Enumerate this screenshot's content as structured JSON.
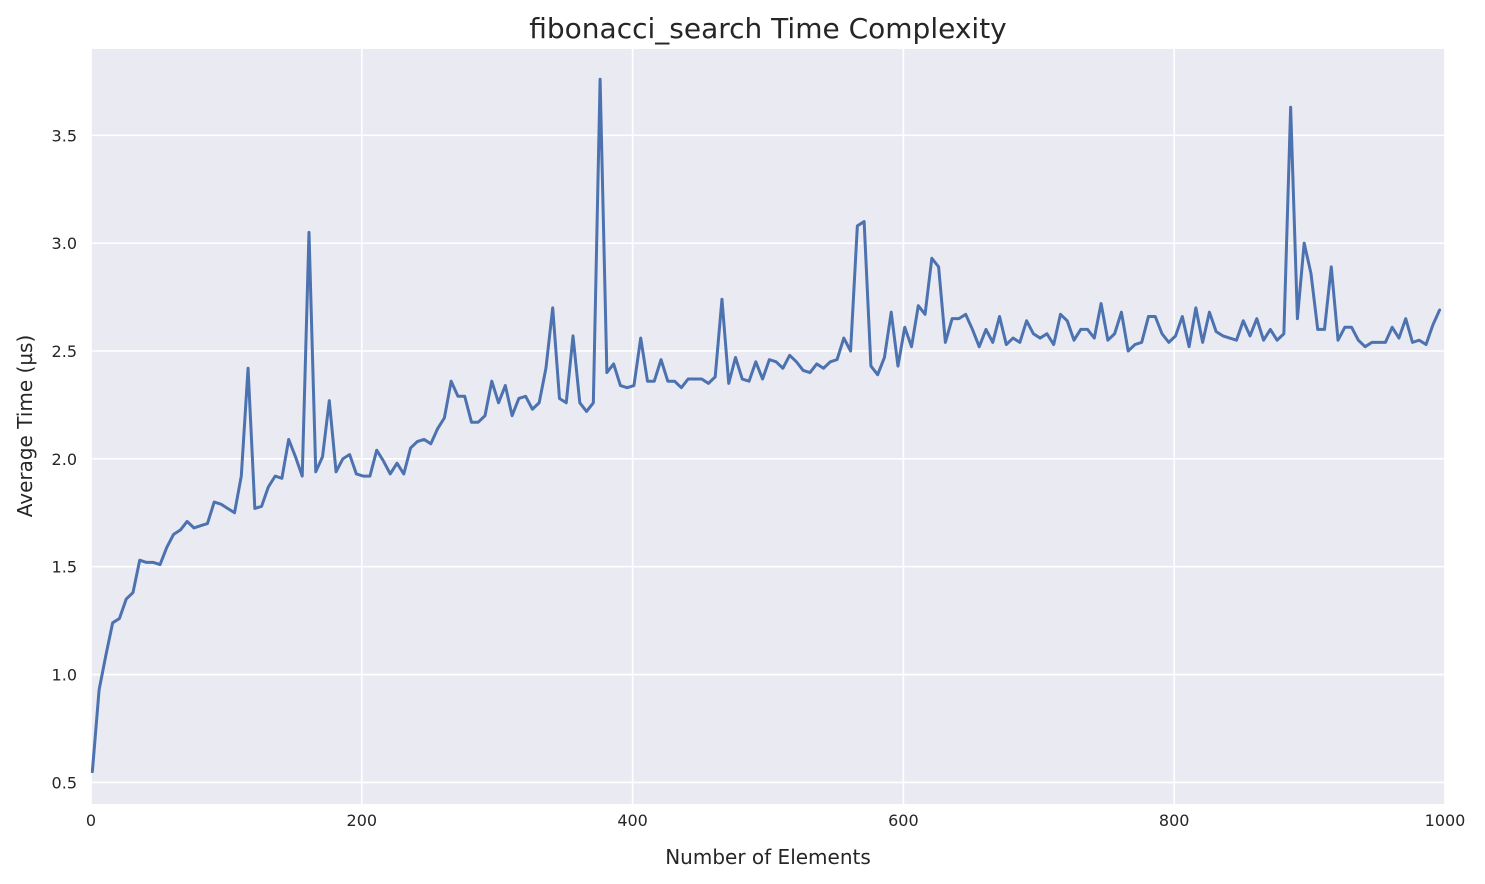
{
  "chart_data": {
    "type": "line",
    "title": "fibonacci_search Time Complexity",
    "xlabel": "Number of Elements",
    "ylabel": "Average Time (µs)",
    "xlim": [
      0,
      1000
    ],
    "ylim": [
      0.4,
      3.9
    ],
    "xticks": [
      0,
      200,
      400,
      600,
      800,
      1000
    ],
    "yticks": [
      0.5,
      1.0,
      1.5,
      2.0,
      2.5,
      3.0,
      3.5
    ],
    "grid": true,
    "colors": {
      "background": "#eaeaf2",
      "grid": "#ffffff",
      "series": "#4c72b0"
    },
    "series": [
      {
        "x": [
          1,
          6,
          11,
          16,
          21,
          26,
          31,
          36,
          41,
          46,
          51,
          56,
          61,
          66,
          71,
          76,
          81,
          86,
          91,
          96,
          101,
          106,
          111,
          116,
          121,
          126,
          131,
          136,
          141,
          146,
          151,
          156,
          161,
          166,
          171,
          176,
          181,
          186,
          191,
          196,
          201,
          206,
          211,
          216,
          221,
          226,
          231,
          236,
          241,
          246,
          251,
          256,
          261,
          266,
          271,
          276,
          281,
          286,
          291,
          296,
          301,
          306,
          311,
          316,
          321,
          326,
          331,
          336,
          341,
          346,
          351,
          356,
          361,
          366,
          371,
          376,
          381,
          386,
          391,
          396,
          401,
          406,
          411,
          416,
          421,
          426,
          431,
          436,
          441,
          446,
          451,
          456,
          461,
          466,
          471,
          476,
          481,
          486,
          491,
          496,
          501,
          506,
          511,
          516,
          521,
          526,
          531,
          536,
          541,
          546,
          551,
          556,
          561,
          566,
          571,
          576,
          581,
          586,
          591,
          596,
          601,
          606,
          611,
          616,
          621,
          626,
          631,
          636,
          641,
          646,
          651,
          656,
          661,
          666,
          671,
          676,
          681,
          686,
          691,
          696,
          701,
          706,
          711,
          716,
          721,
          726,
          731,
          736,
          741,
          746,
          751,
          756,
          761,
          766,
          771,
          776,
          781,
          786,
          791,
          796,
          801,
          806,
          811,
          816,
          821,
          826,
          831,
          836,
          841,
          846,
          851,
          856,
          861,
          866,
          871,
          876,
          881,
          886,
          891,
          896,
          901,
          906,
          911,
          916,
          921,
          926,
          931,
          936,
          941,
          946,
          951,
          956,
          961,
          966,
          971,
          976,
          981,
          986,
          991,
          996
        ],
        "values": [
          0.55,
          0.93,
          1.09,
          1.24,
          1.26,
          1.35,
          1.38,
          1.53,
          1.52,
          1.52,
          1.51,
          1.59,
          1.65,
          1.67,
          1.71,
          1.68,
          1.69,
          1.7,
          1.8,
          1.79,
          1.77,
          1.75,
          1.92,
          2.42,
          1.77,
          1.78,
          1.87,
          1.92,
          1.91,
          2.09,
          2.01,
          1.92,
          3.05,
          1.94,
          2.01,
          2.27,
          1.94,
          2.0,
          2.02,
          1.93,
          1.92,
          1.92,
          2.04,
          1.99,
          1.93,
          1.98,
          1.93,
          2.05,
          2.08,
          2.09,
          2.07,
          2.14,
          2.19,
          2.36,
          2.29,
          2.29,
          2.17,
          2.17,
          2.2,
          2.36,
          2.26,
          2.34,
          2.2,
          2.28,
          2.29,
          2.23,
          2.26,
          2.42,
          2.7,
          2.28,
          2.26,
          2.57,
          2.26,
          2.22,
          2.26,
          3.76,
          2.4,
          2.44,
          2.34,
          2.33,
          2.34,
          2.56,
          2.36,
          2.36,
          2.46,
          2.36,
          2.36,
          2.33,
          2.37,
          2.37,
          2.37,
          2.35,
          2.38,
          2.74,
          2.35,
          2.47,
          2.37,
          2.36,
          2.45,
          2.37,
          2.46,
          2.45,
          2.42,
          2.48,
          2.45,
          2.41,
          2.4,
          2.44,
          2.42,
          2.45,
          2.46,
          2.56,
          2.5,
          3.08,
          3.1,
          2.43,
          2.39,
          2.47,
          2.68,
          2.43,
          2.61,
          2.52,
          2.71,
          2.67,
          2.93,
          2.89,
          2.54,
          2.65,
          2.65,
          2.67,
          2.6,
          2.52,
          2.6,
          2.54,
          2.66,
          2.53,
          2.56,
          2.54,
          2.64,
          2.58,
          2.56,
          2.58,
          2.53,
          2.67,
          2.64,
          2.55,
          2.6,
          2.6,
          2.56,
          2.72,
          2.55,
          2.58,
          2.68,
          2.5,
          2.53,
          2.54,
          2.66,
          2.66,
          2.58,
          2.54,
          2.57,
          2.66,
          2.52,
          2.7,
          2.54,
          2.68,
          2.59,
          2.57,
          2.56,
          2.55,
          2.64,
          2.57,
          2.65,
          2.55,
          2.6,
          2.55,
          2.58,
          3.63,
          2.65,
          3.0,
          2.86,
          2.6,
          2.6,
          2.89,
          2.55,
          2.61,
          2.61,
          2.55,
          2.52,
          2.54,
          2.54,
          2.54,
          2.61,
          2.56,
          2.65,
          2.54,
          2.55,
          2.53,
          2.62,
          2.69
        ]
      }
    ]
  }
}
